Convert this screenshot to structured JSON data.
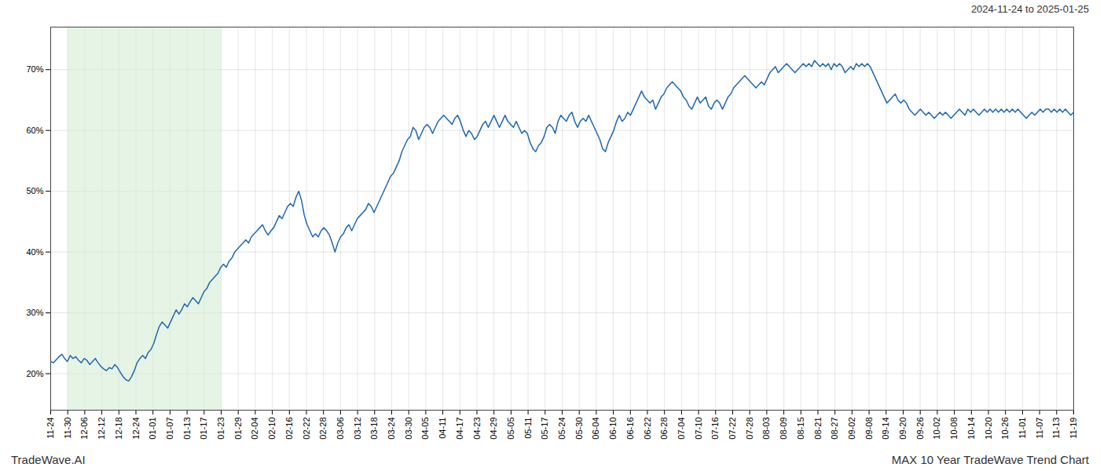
{
  "chart_data": {
    "type": "line",
    "title": "2024-11-24 to 2025-01-25",
    "annotations": [
      "TradeWave.AI",
      "MAX 10 Year TradeWave Trend Chart"
    ],
    "color": "#2068b0",
    "grid": true,
    "xlim": [
      0,
      367
    ],
    "xticks": [
      {
        "value": 0,
        "label": "11-24"
      },
      {
        "value": 6.1167,
        "label": "11-30"
      },
      {
        "value": 12.2333,
        "label": "12-06"
      },
      {
        "value": 18.35,
        "label": "12-12"
      },
      {
        "value": 24.4667,
        "label": "12-18"
      },
      {
        "value": 30.5833,
        "label": "12-24"
      },
      {
        "value": 36.7,
        "label": "01-01"
      },
      {
        "value": 42.8167,
        "label": "01-07"
      },
      {
        "value": 48.9333,
        "label": "01-13"
      },
      {
        "value": 55.05,
        "label": "01-17"
      },
      {
        "value": 61.1667,
        "label": "01-23"
      },
      {
        "value": 67.2833,
        "label": "01-29"
      },
      {
        "value": 73.4,
        "label": "02-04"
      },
      {
        "value": 79.5167,
        "label": "02-10"
      },
      {
        "value": 85.6333,
        "label": "02-16"
      },
      {
        "value": 91.75,
        "label": "02-22"
      },
      {
        "value": 97.8667,
        "label": "02-28"
      },
      {
        "value": 103.9833,
        "label": "03-06"
      },
      {
        "value": 110.1,
        "label": "03-12"
      },
      {
        "value": 116.2167,
        "label": "03-18"
      },
      {
        "value": 122.3333,
        "label": "03-24"
      },
      {
        "value": 128.45,
        "label": "03-30"
      },
      {
        "value": 134.5667,
        "label": "04-05"
      },
      {
        "value": 140.6833,
        "label": "04-11"
      },
      {
        "value": 146.8,
        "label": "04-17"
      },
      {
        "value": 152.9167,
        "label": "04-23"
      },
      {
        "value": 159.0333,
        "label": "04-29"
      },
      {
        "value": 165.15,
        "label": "05-05"
      },
      {
        "value": 171.2667,
        "label": "05-11"
      },
      {
        "value": 177.3833,
        "label": "05-17"
      },
      {
        "value": 183.5,
        "label": "05-24"
      },
      {
        "value": 189.6167,
        "label": "05-30"
      },
      {
        "value": 195.7333,
        "label": "06-04"
      },
      {
        "value": 201.85,
        "label": "06-10"
      },
      {
        "value": 207.9667,
        "label": "06-16"
      },
      {
        "value": 214.0833,
        "label": "06-22"
      },
      {
        "value": 220.2,
        "label": "06-28"
      },
      {
        "value": 226.3167,
        "label": "07-04"
      },
      {
        "value": 232.4333,
        "label": "07-10"
      },
      {
        "value": 238.55,
        "label": "07-16"
      },
      {
        "value": 244.6667,
        "label": "07-22"
      },
      {
        "value": 250.7833,
        "label": "07-28"
      },
      {
        "value": 256.9,
        "label": "08-03"
      },
      {
        "value": 263.0167,
        "label": "08-09"
      },
      {
        "value": 269.1333,
        "label": "08-15"
      },
      {
        "value": 275.25,
        "label": "08-21"
      },
      {
        "value": 281.3667,
        "label": "08-27"
      },
      {
        "value": 287.4833,
        "label": "09-02"
      },
      {
        "value": 293.6,
        "label": "09-08"
      },
      {
        "value": 299.7167,
        "label": "09-14"
      },
      {
        "value": 305.8333,
        "label": "09-20"
      },
      {
        "value": 311.95,
        "label": "09-26"
      },
      {
        "value": 318.0667,
        "label": "10-02"
      },
      {
        "value": 324.1833,
        "label": "10-08"
      },
      {
        "value": 330.3,
        "label": "10-14"
      },
      {
        "value": 336.4167,
        "label": "10-20"
      },
      {
        "value": 342.5333,
        "label": "10-26"
      },
      {
        "value": 348.65,
        "label": "11-01"
      },
      {
        "value": 354.7667,
        "label": "11-07"
      },
      {
        "value": 360.8833,
        "label": "11-13"
      },
      {
        "value": 367,
        "label": "11-19"
      }
    ],
    "ylim": [
      14,
      77
    ],
    "yticks": [
      {
        "value": 20,
        "label": "20%"
      },
      {
        "value": 30,
        "label": "30%"
      },
      {
        "value": 40,
        "label": "40%"
      },
      {
        "value": 50,
        "label": "50%"
      },
      {
        "value": 60,
        "label": "60%"
      },
      {
        "value": 70,
        "label": "70%"
      }
    ],
    "shade": {
      "from": 6.1167,
      "to": 61.1667,
      "color": "#d4ecd4"
    },
    "values": [
      22.0,
      21.8,
      22.3,
      22.8,
      23.2,
      22.5,
      22.0,
      23.0,
      22.5,
      22.8,
      22.2,
      21.8,
      22.5,
      22.2,
      21.5,
      22.0,
      22.5,
      21.8,
      21.2,
      20.8,
      20.5,
      21.0,
      20.8,
      21.5,
      21.0,
      20.2,
      19.5,
      19.0,
      18.8,
      19.5,
      20.5,
      21.8,
      22.5,
      23.0,
      22.5,
      23.5,
      24.0,
      25.0,
      26.5,
      27.8,
      28.5,
      28.0,
      27.5,
      28.5,
      29.5,
      30.5,
      29.8,
      30.5,
      31.5,
      31.0,
      31.8,
      32.5,
      32.0,
      31.5,
      32.5,
      33.5,
      34.0,
      35.0,
      35.5,
      36.0,
      36.5,
      37.5,
      38.0,
      37.5,
      38.5,
      39.0,
      40.0,
      40.5,
      41.0,
      41.5,
      42.0,
      41.5,
      42.5,
      43.0,
      43.5,
      44.0,
      44.5,
      43.5,
      42.8,
      43.5,
      44.0,
      45.0,
      46.0,
      45.5,
      46.5,
      47.5,
      48.0,
      47.5,
      49.0,
      50.0,
      48.5,
      46.0,
      44.5,
      43.5,
      42.5,
      43.0,
      42.5,
      43.5,
      44.0,
      43.5,
      42.8,
      41.5,
      40.0,
      41.5,
      42.5,
      43.0,
      44.0,
      44.5,
      43.5,
      44.5,
      45.5,
      46.0,
      46.5,
      47.0,
      48.0,
      47.5,
      46.5,
      47.5,
      48.5,
      49.5,
      50.5,
      51.5,
      52.5,
      53.0,
      54.0,
      55.0,
      56.5,
      57.5,
      58.5,
      59.0,
      60.5,
      60.0,
      58.5,
      59.5,
      60.5,
      61.0,
      60.5,
      59.5,
      60.5,
      61.5,
      62.0,
      62.5,
      62.0,
      61.5,
      61.0,
      62.0,
      62.5,
      61.5,
      60.0,
      59.0,
      60.0,
      59.5,
      58.5,
      59.0,
      60.0,
      61.0,
      61.5,
      60.5,
      61.5,
      62.5,
      61.5,
      60.5,
      61.5,
      62.5,
      61.5,
      61.0,
      60.5,
      61.5,
      60.5,
      59.5,
      60.0,
      59.5,
      58.0,
      57.0,
      56.5,
      57.5,
      58.0,
      59.0,
      60.5,
      61.0,
      60.5,
      59.5,
      61.5,
      62.5,
      62.0,
      61.5,
      62.5,
      63.0,
      61.5,
      60.5,
      61.5,
      62.0,
      61.5,
      62.5,
      61.5,
      60.5,
      59.5,
      58.5,
      57.0,
      56.5,
      58.0,
      59.0,
      60.0,
      61.5,
      62.5,
      61.5,
      62.0,
      63.0,
      62.5,
      63.5,
      64.5,
      65.5,
      66.5,
      65.5,
      65.0,
      64.5,
      65.0,
      63.5,
      64.5,
      65.5,
      66.0,
      67.0,
      67.5,
      68.0,
      67.5,
      67.0,
      66.5,
      65.5,
      65.0,
      64.0,
      63.5,
      64.5,
      65.5,
      64.5,
      65.0,
      65.5,
      64.0,
      63.5,
      64.5,
      65.0,
      64.5,
      63.5,
      64.5,
      65.5,
      66.0,
      67.0,
      67.5,
      68.0,
      68.5,
      69.0,
      68.5,
      68.0,
      67.5,
      67.0,
      67.5,
      68.0,
      67.5,
      68.5,
      69.5,
      70.0,
      70.5,
      69.5,
      70.0,
      70.5,
      71.0,
      70.5,
      70.0,
      69.5,
      70.0,
      70.5,
      71.0,
      70.5,
      71.0,
      70.5,
      71.5,
      71.0,
      70.5,
      71.0,
      70.5,
      71.0,
      70.0,
      71.0,
      70.5,
      71.0,
      70.5,
      69.5,
      70.0,
      70.5,
      70.0,
      71.0,
      70.5,
      71.0,
      70.5,
      71.0,
      70.5,
      69.5,
      68.5,
      67.5,
      66.5,
      65.5,
      64.5,
      65.0,
      65.5,
      66.0,
      65.0,
      64.5,
      65.0,
      64.5,
      63.5,
      63.0,
      62.5,
      63.0,
      63.5,
      63.0,
      62.5,
      63.0,
      62.5,
      62.0,
      62.5,
      63.0,
      62.5,
      63.0,
      62.5,
      62.0,
      62.5,
      63.0,
      63.5,
      63.0,
      62.5,
      63.5,
      63.0,
      63.5,
      63.0,
      62.5,
      63.0,
      63.5,
      63.0,
      63.5,
      63.0,
      63.5,
      63.0,
      63.5,
      63.0,
      63.5,
      63.0,
      63.5,
      63.0,
      63.5,
      63.0,
      62.5,
      62.0,
      62.5,
      63.0,
      62.5,
      63.0,
      63.5,
      63.0,
      63.5,
      63.5,
      63.0,
      63.5,
      63.0,
      63.5,
      63.0,
      63.5,
      63.0,
      62.5,
      63.0
    ]
  }
}
